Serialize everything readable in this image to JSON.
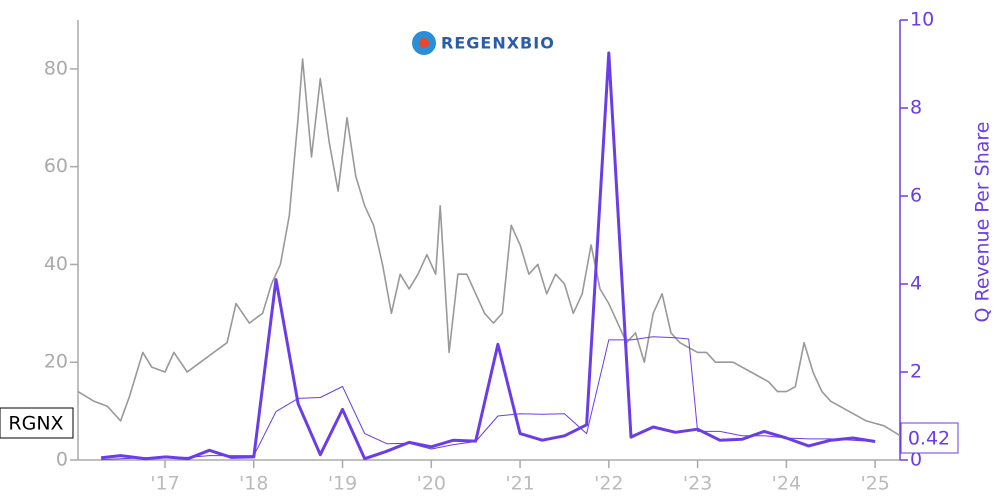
{
  "chart_data": {
    "type": "line",
    "logo": "REGENXBIO",
    "y2label": "Q Revenue Per Share",
    "xlim": [
      2016.02,
      2025.28
    ],
    "xticks": [
      {
        "value": 2017,
        "label": "'17"
      },
      {
        "value": 2018,
        "label": "'18"
      },
      {
        "value": 2019,
        "label": "'19"
      },
      {
        "value": 2020,
        "label": "'20"
      },
      {
        "value": 2021,
        "label": "'21"
      },
      {
        "value": 2022,
        "label": "'22"
      },
      {
        "value": 2023,
        "label": "'23"
      },
      {
        "value": 2024,
        "label": "'24"
      },
      {
        "value": 2025,
        "label": "'25"
      }
    ],
    "ylim": [
      0,
      90
    ],
    "yticks": [
      0,
      20,
      40,
      60,
      80
    ],
    "y2lim": [
      0,
      10
    ],
    "y2ticks": [
      0,
      2,
      4,
      6,
      8,
      10
    ],
    "series": [
      {
        "name": "RGNX",
        "color": "#999999",
        "width": 1.6,
        "x": [
          2016.02,
          2016.2,
          2016.35,
          2016.5,
          2016.6,
          2016.75,
          2016.85,
          2017.0,
          2017.1,
          2017.25,
          2017.4,
          2017.55,
          2017.7,
          2017.8,
          2017.95,
          2018.1,
          2018.2,
          2018.3,
          2018.4,
          2018.5,
          2018.55,
          2018.65,
          2018.75,
          2018.85,
          2018.95,
          2019.05,
          2019.15,
          2019.25,
          2019.35,
          2019.45,
          2019.55,
          2019.65,
          2019.75,
          2019.85,
          2019.95,
          2020.05,
          2020.1,
          2020.2,
          2020.3,
          2020.4,
          2020.5,
          2020.6,
          2020.7,
          2020.8,
          2020.9,
          2021.0,
          2021.1,
          2021.2,
          2021.3,
          2021.4,
          2021.5,
          2021.6,
          2021.7,
          2021.8,
          2021.9,
          2022.0,
          2022.1,
          2022.2,
          2022.3,
          2022.4,
          2022.5,
          2022.6,
          2022.7,
          2022.8,
          2022.9,
          2023.0,
          2023.1,
          2023.2,
          2023.4,
          2023.6,
          2023.8,
          2023.9,
          2024.0,
          2024.1,
          2024.2,
          2024.3,
          2024.4,
          2024.5,
          2024.7,
          2024.9,
          2025.1,
          2025.28
        ],
        "values": [
          14,
          12,
          11,
          8,
          13,
          22,
          19,
          18,
          22,
          18,
          20,
          22,
          24,
          32,
          28,
          30,
          36,
          40,
          50,
          70,
          82,
          62,
          78,
          65,
          55,
          70,
          58,
          52,
          48,
          40,
          30,
          38,
          35,
          38,
          42,
          38,
          52,
          22,
          38,
          38,
          34,
          30,
          28,
          30,
          48,
          44,
          38,
          40,
          34,
          38,
          36,
          30,
          34,
          44,
          35,
          32,
          28,
          24,
          26,
          20,
          30,
          34,
          26,
          24,
          23,
          22,
          22,
          20,
          20,
          18,
          16,
          14,
          14,
          15,
          24,
          18,
          14,
          12,
          10,
          8,
          7,
          5
        ]
      },
      {
        "name": "Q Revenue Per Share",
        "axis": "y2",
        "color": "#6a3de8",
        "width": 3,
        "x": [
          2016.28,
          2016.5,
          2016.78,
          2017.01,
          2017.26,
          2017.5,
          2017.75,
          2018.0,
          2018.25,
          2018.5,
          2018.75,
          2019.0,
          2019.25,
          2019.5,
          2019.75,
          2020.0,
          2020.25,
          2020.5,
          2020.75,
          2021.0,
          2021.25,
          2021.5,
          2021.75,
          2022.0,
          2022.25,
          2022.5,
          2022.75,
          2023.0,
          2023.25,
          2023.5,
          2023.75,
          2024.0,
          2024.25,
          2024.5,
          2024.75,
          2025.0
        ],
        "values": [
          0.05,
          0.1,
          0.03,
          0.07,
          0.03,
          0.22,
          0.06,
          0.07,
          4.1,
          1.28,
          0.12,
          1.15,
          0.03,
          0.2,
          0.4,
          0.3,
          0.45,
          0.43,
          2.63,
          0.6,
          0.45,
          0.55,
          0.8,
          9.25,
          0.52,
          0.75,
          0.63,
          0.7,
          0.45,
          0.47,
          0.65,
          0.5,
          0.32,
          0.45,
          0.5,
          0.42
        ]
      },
      {
        "axis": "y2",
        "color": "#6a3de8",
        "width": 1,
        "x": [
          2016.28,
          2016.5,
          2016.78,
          2017.01,
          2017.26,
          2017.5,
          2017.75,
          2018.0,
          2018.25,
          2018.5,
          2018.75,
          2019.0,
          2019.25,
          2019.5,
          2019.75,
          2020.0,
          2020.25,
          2020.5,
          2020.75,
          2021.0,
          2021.25,
          2021.5,
          2021.75,
          2022.0,
          2022.25,
          2022.5,
          2022.75,
          2022.9,
          2023.0,
          2023.25,
          2023.5,
          2023.75,
          2024.0,
          2024.25,
          2024.5,
          2024.75,
          2025.0
        ],
        "values": [
          0.01,
          0.03,
          0.05,
          0.06,
          0.06,
          0.1,
          0.1,
          0.1,
          1.1,
          1.4,
          1.42,
          1.67,
          0.6,
          0.37,
          0.38,
          0.25,
          0.35,
          0.42,
          1.0,
          1.05,
          1.04,
          1.05,
          0.6,
          2.73,
          2.73,
          2.8,
          2.78,
          2.75,
          0.65,
          0.65,
          0.55,
          0.55,
          0.5,
          0.48,
          0.48,
          0.45,
          0.42
        ]
      }
    ]
  }
}
